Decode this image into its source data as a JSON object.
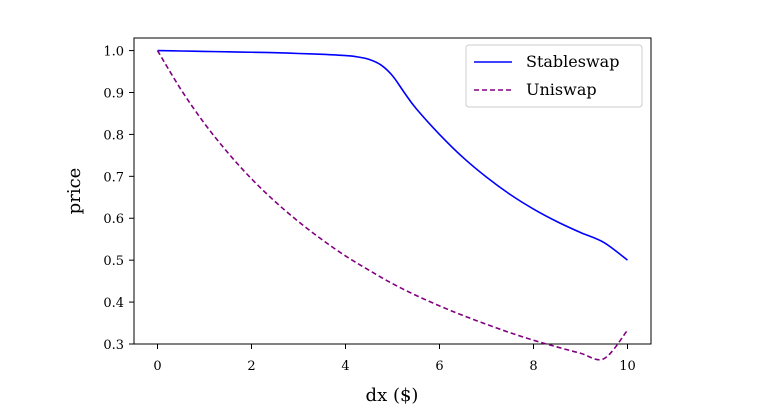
{
  "chart_data": {
    "type": "line",
    "xlabel": "dx ($)",
    "ylabel": "price",
    "xlim": [
      -0.5,
      10.5
    ],
    "ylim": [
      0.3,
      1.03
    ],
    "xticks": [
      "0",
      "2",
      "4",
      "6",
      "8",
      "10"
    ],
    "yticks": [
      "0.3",
      "0.4",
      "0.5",
      "0.6",
      "0.7",
      "0.8",
      "0.9",
      "1.0"
    ],
    "grid": false,
    "legend_position": "top-right",
    "series": [
      {
        "name": "Stableswap",
        "color": "#0000ff",
        "line_style": "solid",
        "x": [
          0,
          0.5,
          1,
          1.5,
          2,
          2.5,
          3,
          3.5,
          4,
          4.25,
          4.5,
          4.75,
          5,
          5.25,
          5.5,
          6,
          6.5,
          7,
          7.5,
          8,
          8.5,
          9,
          9.5,
          10
        ],
        "y": [
          1.0,
          0.999,
          0.998,
          0.997,
          0.996,
          0.995,
          0.993,
          0.991,
          0.988,
          0.985,
          0.979,
          0.966,
          0.94,
          0.9,
          0.862,
          0.8,
          0.745,
          0.698,
          0.657,
          0.622,
          0.592,
          0.566,
          0.542,
          0.5
        ]
      },
      {
        "name": "Uniswap",
        "color": "#800080",
        "line_style": "dashed",
        "x": [
          0,
          0.5,
          1,
          1.5,
          2,
          2.5,
          3,
          3.5,
          4,
          4.5,
          5,
          5.5,
          6,
          6.5,
          7,
          7.5,
          8,
          8.5,
          9,
          9.5,
          10
        ],
        "y": [
          1.0,
          0.907,
          0.826,
          0.756,
          0.694,
          0.64,
          0.592,
          0.549,
          0.51,
          0.476,
          0.444,
          0.416,
          0.391,
          0.368,
          0.347,
          0.327,
          0.309,
          0.293,
          0.278,
          0.265,
          0.333
        ]
      }
    ]
  }
}
